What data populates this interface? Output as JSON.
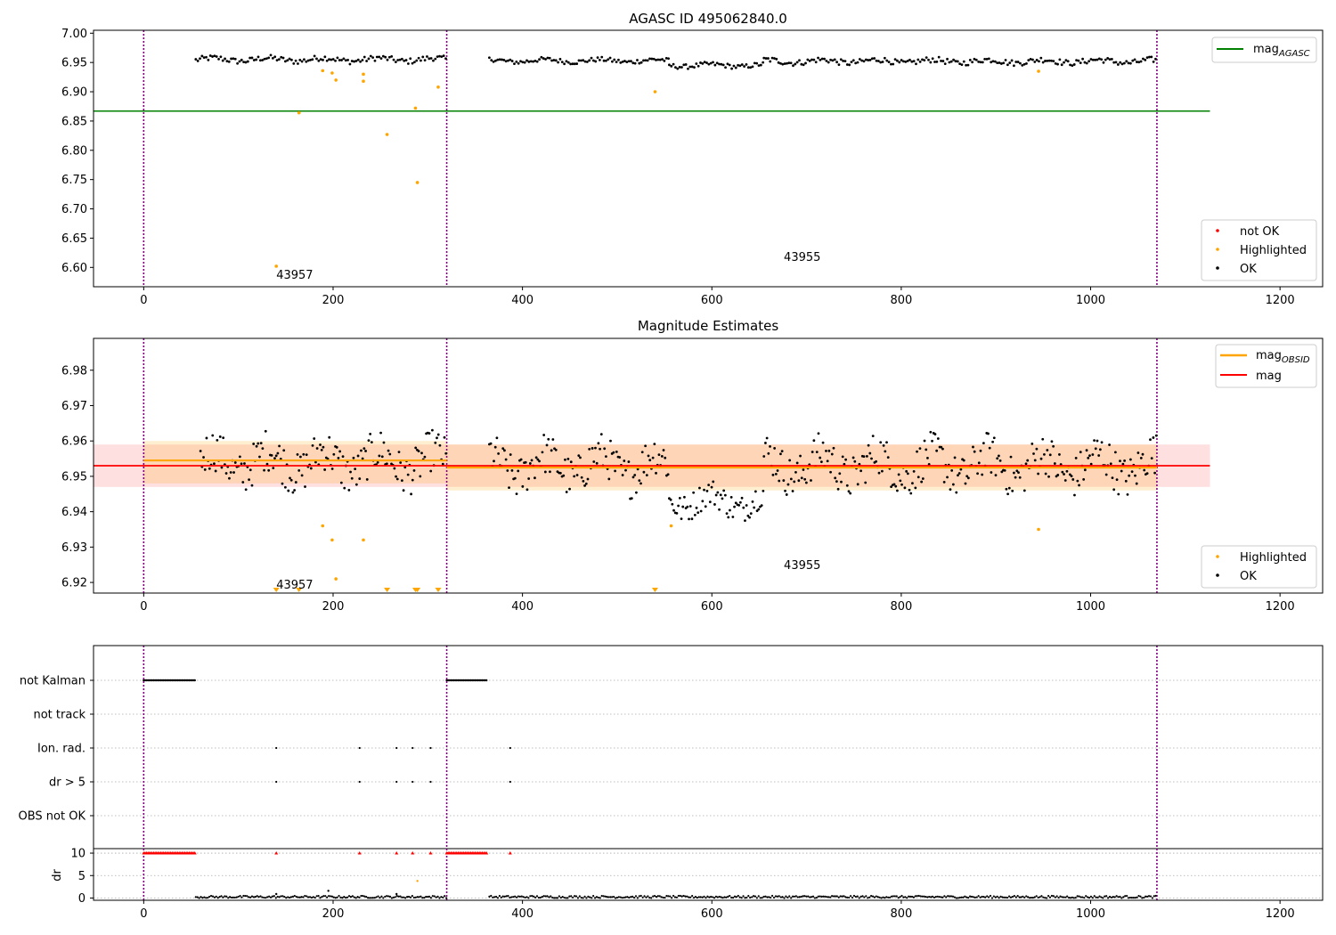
{
  "chart_data": [
    {
      "type": "scatter",
      "title": "AGASC ID 495062840.0",
      "xlim": [
        -53,
        1245
      ],
      "ylim": [
        6.567,
        7.005
      ],
      "xticks": [
        0,
        200,
        400,
        600,
        800,
        1000,
        1200
      ],
      "yticks": [
        6.6,
        6.65,
        6.7,
        6.75,
        6.8,
        6.85,
        6.9,
        6.95,
        7.0
      ],
      "vlines": [
        0,
        320,
        1070
      ],
      "hlines": [
        {
          "name": "mag_AGASC",
          "y": 6.867,
          "x0": -53,
          "x1": 1126,
          "color": "#008000"
        }
      ],
      "obsid_labels": [
        {
          "text": "43957",
          "x": 140,
          "y": 6.588
        },
        {
          "text": "43955",
          "x": 676,
          "y": 6.619
        }
      ],
      "legends": [
        {
          "position": "top-right",
          "entries": [
            {
              "label": "mag",
              "sub": "AGASC",
              "kind": "line",
              "color": "#008000"
            }
          ]
        },
        {
          "position": "bottom-right",
          "entries": [
            {
              "label": "not OK",
              "kind": "dot",
              "color": "#ff0000"
            },
            {
              "label": "Highlighted",
              "kind": "dot",
              "color": "#ffa500"
            },
            {
              "label": "OK",
              "kind": "dot",
              "color": "#000000"
            }
          ]
        }
      ],
      "ok_segments": [
        {
          "x0": 55,
          "x1": 320,
          "y": 6.955,
          "amp": 0.005
        },
        {
          "x0": 365,
          "x1": 555,
          "y": 6.953,
          "amp": 0.004
        },
        {
          "x0": 555,
          "x1": 655,
          "y": 6.945,
          "amp": 0.004
        },
        {
          "x0": 655,
          "x1": 1070,
          "y": 6.952,
          "amp": 0.005
        }
      ],
      "highlighted": {
        "x": [
          140,
          164,
          189,
          199,
          203,
          232,
          232,
          257,
          287,
          289,
          311,
          540,
          945
        ],
        "y": [
          6.602,
          6.864,
          6.936,
          6.932,
          6.92,
          6.918,
          6.93,
          6.827,
          6.872,
          6.745,
          6.908,
          6.9,
          6.935
        ]
      }
    },
    {
      "type": "scatter",
      "title": "Magnitude Estimates",
      "xlim": [
        -53,
        1245
      ],
      "ylim": [
        6.917,
        6.989
      ],
      "xticks": [
        0,
        200,
        400,
        600,
        800,
        1000,
        1200
      ],
      "yticks": [
        6.92,
        6.93,
        6.94,
        6.95,
        6.96,
        6.97,
        6.98
      ],
      "vlines": [
        0,
        320,
        1070
      ],
      "mag": {
        "y": 6.953,
        "band": [
          6.947,
          6.959
        ],
        "x0": -53,
        "x1": 1126,
        "color": "#ff0000"
      },
      "mag_obsid": [
        {
          "x0": 0,
          "x1": 320,
          "y": 6.9545,
          "band": [
            6.948,
            6.96
          ]
        },
        {
          "x0": 320,
          "x1": 1070,
          "y": 6.9525,
          "band": [
            6.946,
            6.959
          ]
        }
      ],
      "obsid_labels": [
        {
          "text": "43957",
          "x": 140,
          "y": 6.9195
        },
        {
          "text": "43955",
          "x": 676,
          "y": 6.925
        }
      ],
      "legends": [
        {
          "position": "top-right",
          "entries": [
            {
              "label": "mag",
              "sub": "OBSID",
              "kind": "line",
              "color": "#ffa500"
            },
            {
              "label": "mag",
              "sub": "",
              "kind": "line",
              "color": "#ff0000"
            }
          ]
        },
        {
          "position": "bottom-right",
          "entries": [
            {
              "label": "Highlighted",
              "kind": "dot",
              "color": "#ffa500"
            },
            {
              "label": "OK",
              "kind": "dot",
              "color": "#000000"
            }
          ]
        }
      ],
      "ok_segments": [
        {
          "x0": 60,
          "x1": 320,
          "y": 6.954,
          "amp": 0.006
        },
        {
          "x0": 365,
          "x1": 555,
          "y": 6.953,
          "amp": 0.006
        },
        {
          "x0": 555,
          "x1": 655,
          "y": 6.943,
          "amp": 0.004
        },
        {
          "x0": 655,
          "x1": 1070,
          "y": 6.953,
          "amp": 0.006
        }
      ],
      "highlighted": {
        "x": [
          189,
          199,
          203,
          232,
          557,
          945
        ],
        "y": [
          6.936,
          6.932,
          6.921,
          6.932,
          6.936,
          6.935
        ]
      },
      "below_range_x": [
        140,
        164,
        257,
        287,
        289,
        311,
        540
      ]
    },
    {
      "type": "scatter",
      "title": "",
      "xlim": [
        -53,
        1245
      ],
      "xticks": [
        0,
        200,
        400,
        600,
        800,
        1000,
        1200
      ],
      "vlines": [
        0,
        320,
        1070
      ],
      "flag_rows": [
        {
          "label": "not Kalman",
          "segments": [
            [
              0,
              55
            ],
            [
              320,
              363
            ]
          ],
          "points": []
        },
        {
          "label": "not track",
          "segments": [],
          "points": []
        },
        {
          "label": "Ion. rad.",
          "segments": [],
          "points": [
            140,
            228,
            267,
            284,
            303,
            387
          ]
        },
        {
          "label": "dr > 5",
          "segments": [],
          "points": [
            140,
            228,
            267,
            284,
            303,
            387
          ]
        },
        {
          "label": "OBS not OK",
          "segments": [],
          "points": []
        }
      ],
      "dr": {
        "ylabel": "dr",
        "yticks": [
          0,
          5,
          10
        ],
        "ylim": [
          -0.5,
          11
        ],
        "clipped_y": 10,
        "clipped_segments": [
          [
            0,
            55
          ],
          [
            320,
            363
          ]
        ],
        "clipped_points": [
          140,
          228,
          267,
          284,
          303,
          387
        ],
        "ok_segments": [
          [
            55,
            320
          ],
          [
            365,
            1070
          ]
        ],
        "outliers": {
          "x": [
            195,
            289,
            140,
            267
          ],
          "y": [
            1.6,
            3.8,
            0.9,
            0.9
          ]
        }
      }
    }
  ]
}
